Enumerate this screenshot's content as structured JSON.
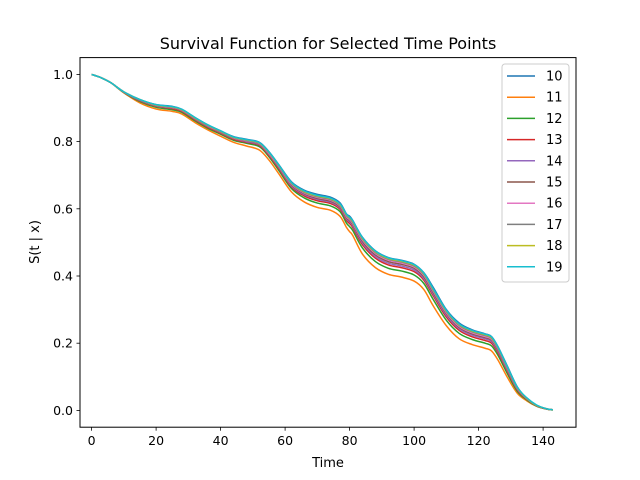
{
  "chart_data": {
    "type": "line",
    "title": "Survival Function for Selected Time Points",
    "xlabel": "Time",
    "ylabel": "S(t | x)",
    "xlim": [
      -3.6,
      150.2
    ],
    "ylim": [
      -0.05,
      1.05
    ],
    "xticks": [
      0,
      20,
      40,
      60,
      80,
      100,
      120,
      140
    ],
    "yticks": [
      0.0,
      0.2,
      0.4,
      0.6,
      0.8,
      1.0
    ],
    "ytick_labels": [
      "0.0",
      "0.2",
      "0.4",
      "0.6",
      "0.8",
      "1.0"
    ],
    "grid": false,
    "legend_position": "top-right",
    "x": [
      0,
      3,
      6,
      10,
      15,
      20,
      25,
      28,
      32,
      36,
      40,
      44,
      48,
      52,
      55,
      58,
      62,
      66,
      70,
      74,
      77,
      79,
      80,
      81,
      84,
      88,
      92,
      96,
      100,
      103,
      106,
      110,
      114,
      118,
      122,
      124,
      126,
      129,
      132,
      135,
      138,
      141,
      143
    ],
    "series": [
      {
        "name": "10",
        "color": "#1f77b4",
        "values": [
          1.0,
          0.99,
          0.975,
          0.948,
          0.925,
          0.91,
          0.905,
          0.896,
          0.872,
          0.85,
          0.832,
          0.815,
          0.807,
          0.798,
          0.77,
          0.732,
          0.68,
          0.655,
          0.643,
          0.635,
          0.618,
          0.585,
          0.578,
          0.565,
          0.515,
          0.475,
          0.455,
          0.447,
          0.435,
          0.41,
          0.365,
          0.3,
          0.26,
          0.24,
          0.228,
          0.22,
          0.19,
          0.13,
          0.07,
          0.035,
          0.015,
          0.005,
          0.002
        ]
      },
      {
        "name": "11",
        "color": "#ff7f0e",
        "values": [
          1.0,
          0.99,
          0.975,
          0.945,
          0.915,
          0.897,
          0.89,
          0.882,
          0.857,
          0.835,
          0.816,
          0.798,
          0.787,
          0.775,
          0.745,
          0.705,
          0.65,
          0.62,
          0.604,
          0.596,
          0.578,
          0.545,
          0.532,
          0.52,
          0.465,
          0.425,
          0.405,
          0.397,
          0.385,
          0.36,
          0.31,
          0.252,
          0.213,
          0.196,
          0.185,
          0.177,
          0.15,
          0.097,
          0.051,
          0.028,
          0.012,
          0.004,
          0.001
        ]
      },
      {
        "name": "12",
        "color": "#2ca02c",
        "values": [
          1.0,
          0.99,
          0.975,
          0.946,
          0.919,
          0.902,
          0.895,
          0.887,
          0.862,
          0.84,
          0.822,
          0.804,
          0.795,
          0.785,
          0.755,
          0.715,
          0.66,
          0.632,
          0.617,
          0.609,
          0.592,
          0.558,
          0.547,
          0.535,
          0.483,
          0.443,
          0.423,
          0.415,
          0.403,
          0.378,
          0.329,
          0.268,
          0.229,
          0.211,
          0.2,
          0.192,
          0.164,
          0.108,
          0.057,
          0.031,
          0.013,
          0.004,
          0.001
        ]
      },
      {
        "name": "13",
        "color": "#d62728",
        "values": [
          1.0,
          0.99,
          0.975,
          0.947,
          0.921,
          0.905,
          0.898,
          0.89,
          0.865,
          0.843,
          0.825,
          0.807,
          0.798,
          0.789,
          0.759,
          0.72,
          0.665,
          0.638,
          0.624,
          0.616,
          0.599,
          0.566,
          0.556,
          0.544,
          0.493,
          0.453,
          0.433,
          0.425,
          0.413,
          0.388,
          0.34,
          0.278,
          0.238,
          0.219,
          0.208,
          0.2,
          0.172,
          0.115,
          0.061,
          0.033,
          0.014,
          0.004,
          0.002
        ]
      },
      {
        "name": "14",
        "color": "#9467bd",
        "values": [
          1.0,
          0.99,
          0.975,
          0.947,
          0.922,
          0.906,
          0.9,
          0.892,
          0.867,
          0.845,
          0.827,
          0.809,
          0.8,
          0.791,
          0.762,
          0.723,
          0.668,
          0.642,
          0.628,
          0.62,
          0.603,
          0.57,
          0.561,
          0.549,
          0.498,
          0.458,
          0.438,
          0.43,
          0.418,
          0.393,
          0.345,
          0.283,
          0.243,
          0.224,
          0.213,
          0.205,
          0.176,
          0.118,
          0.063,
          0.034,
          0.014,
          0.005,
          0.002
        ]
      },
      {
        "name": "15",
        "color": "#8c564b",
        "values": [
          1.0,
          0.99,
          0.975,
          0.948,
          0.923,
          0.907,
          0.901,
          0.893,
          0.868,
          0.846,
          0.828,
          0.81,
          0.802,
          0.793,
          0.764,
          0.725,
          0.671,
          0.645,
          0.631,
          0.623,
          0.606,
          0.574,
          0.565,
          0.553,
          0.503,
          0.463,
          0.443,
          0.435,
          0.423,
          0.398,
          0.35,
          0.288,
          0.247,
          0.228,
          0.217,
          0.209,
          0.18,
          0.121,
          0.065,
          0.035,
          0.015,
          0.005,
          0.002
        ]
      },
      {
        "name": "16",
        "color": "#e377c2",
        "values": [
          1.0,
          0.99,
          0.975,
          0.948,
          0.924,
          0.908,
          0.902,
          0.894,
          0.869,
          0.847,
          0.829,
          0.811,
          0.803,
          0.794,
          0.765,
          0.727,
          0.673,
          0.647,
          0.634,
          0.626,
          0.609,
          0.577,
          0.568,
          0.556,
          0.507,
          0.467,
          0.447,
          0.439,
          0.427,
          0.402,
          0.354,
          0.291,
          0.25,
          0.231,
          0.22,
          0.212,
          0.183,
          0.123,
          0.066,
          0.035,
          0.015,
          0.005,
          0.002
        ]
      },
      {
        "name": "17",
        "color": "#7f7f7f",
        "values": [
          1.0,
          0.99,
          0.975,
          0.948,
          0.924,
          0.909,
          0.903,
          0.895,
          0.87,
          0.848,
          0.83,
          0.812,
          0.804,
          0.795,
          0.767,
          0.729,
          0.675,
          0.649,
          0.636,
          0.628,
          0.611,
          0.58,
          0.571,
          0.559,
          0.51,
          0.47,
          0.45,
          0.442,
          0.43,
          0.405,
          0.357,
          0.294,
          0.253,
          0.234,
          0.223,
          0.215,
          0.185,
          0.125,
          0.067,
          0.036,
          0.015,
          0.005,
          0.002
        ]
      },
      {
        "name": "18",
        "color": "#bcbd22",
        "values": [
          1.0,
          0.99,
          0.975,
          0.948,
          0.925,
          0.909,
          0.903,
          0.895,
          0.871,
          0.849,
          0.831,
          0.813,
          0.805,
          0.796,
          0.768,
          0.73,
          0.677,
          0.651,
          0.638,
          0.63,
          0.613,
          0.582,
          0.573,
          0.562,
          0.512,
          0.472,
          0.452,
          0.444,
          0.432,
          0.407,
          0.359,
          0.296,
          0.255,
          0.236,
          0.225,
          0.217,
          0.187,
          0.127,
          0.068,
          0.036,
          0.015,
          0.005,
          0.002
        ]
      },
      {
        "name": "19",
        "color": "#17becf",
        "values": [
          1.0,
          0.99,
          0.975,
          0.948,
          0.925,
          0.91,
          0.904,
          0.896,
          0.872,
          0.85,
          0.832,
          0.814,
          0.806,
          0.797,
          0.769,
          0.731,
          0.678,
          0.653,
          0.64,
          0.632,
          0.615,
          0.584,
          0.575,
          0.564,
          0.514,
          0.474,
          0.454,
          0.446,
          0.434,
          0.409,
          0.361,
          0.298,
          0.257,
          0.238,
          0.227,
          0.219,
          0.189,
          0.128,
          0.069,
          0.037,
          0.016,
          0.005,
          0.002
        ]
      }
    ]
  }
}
